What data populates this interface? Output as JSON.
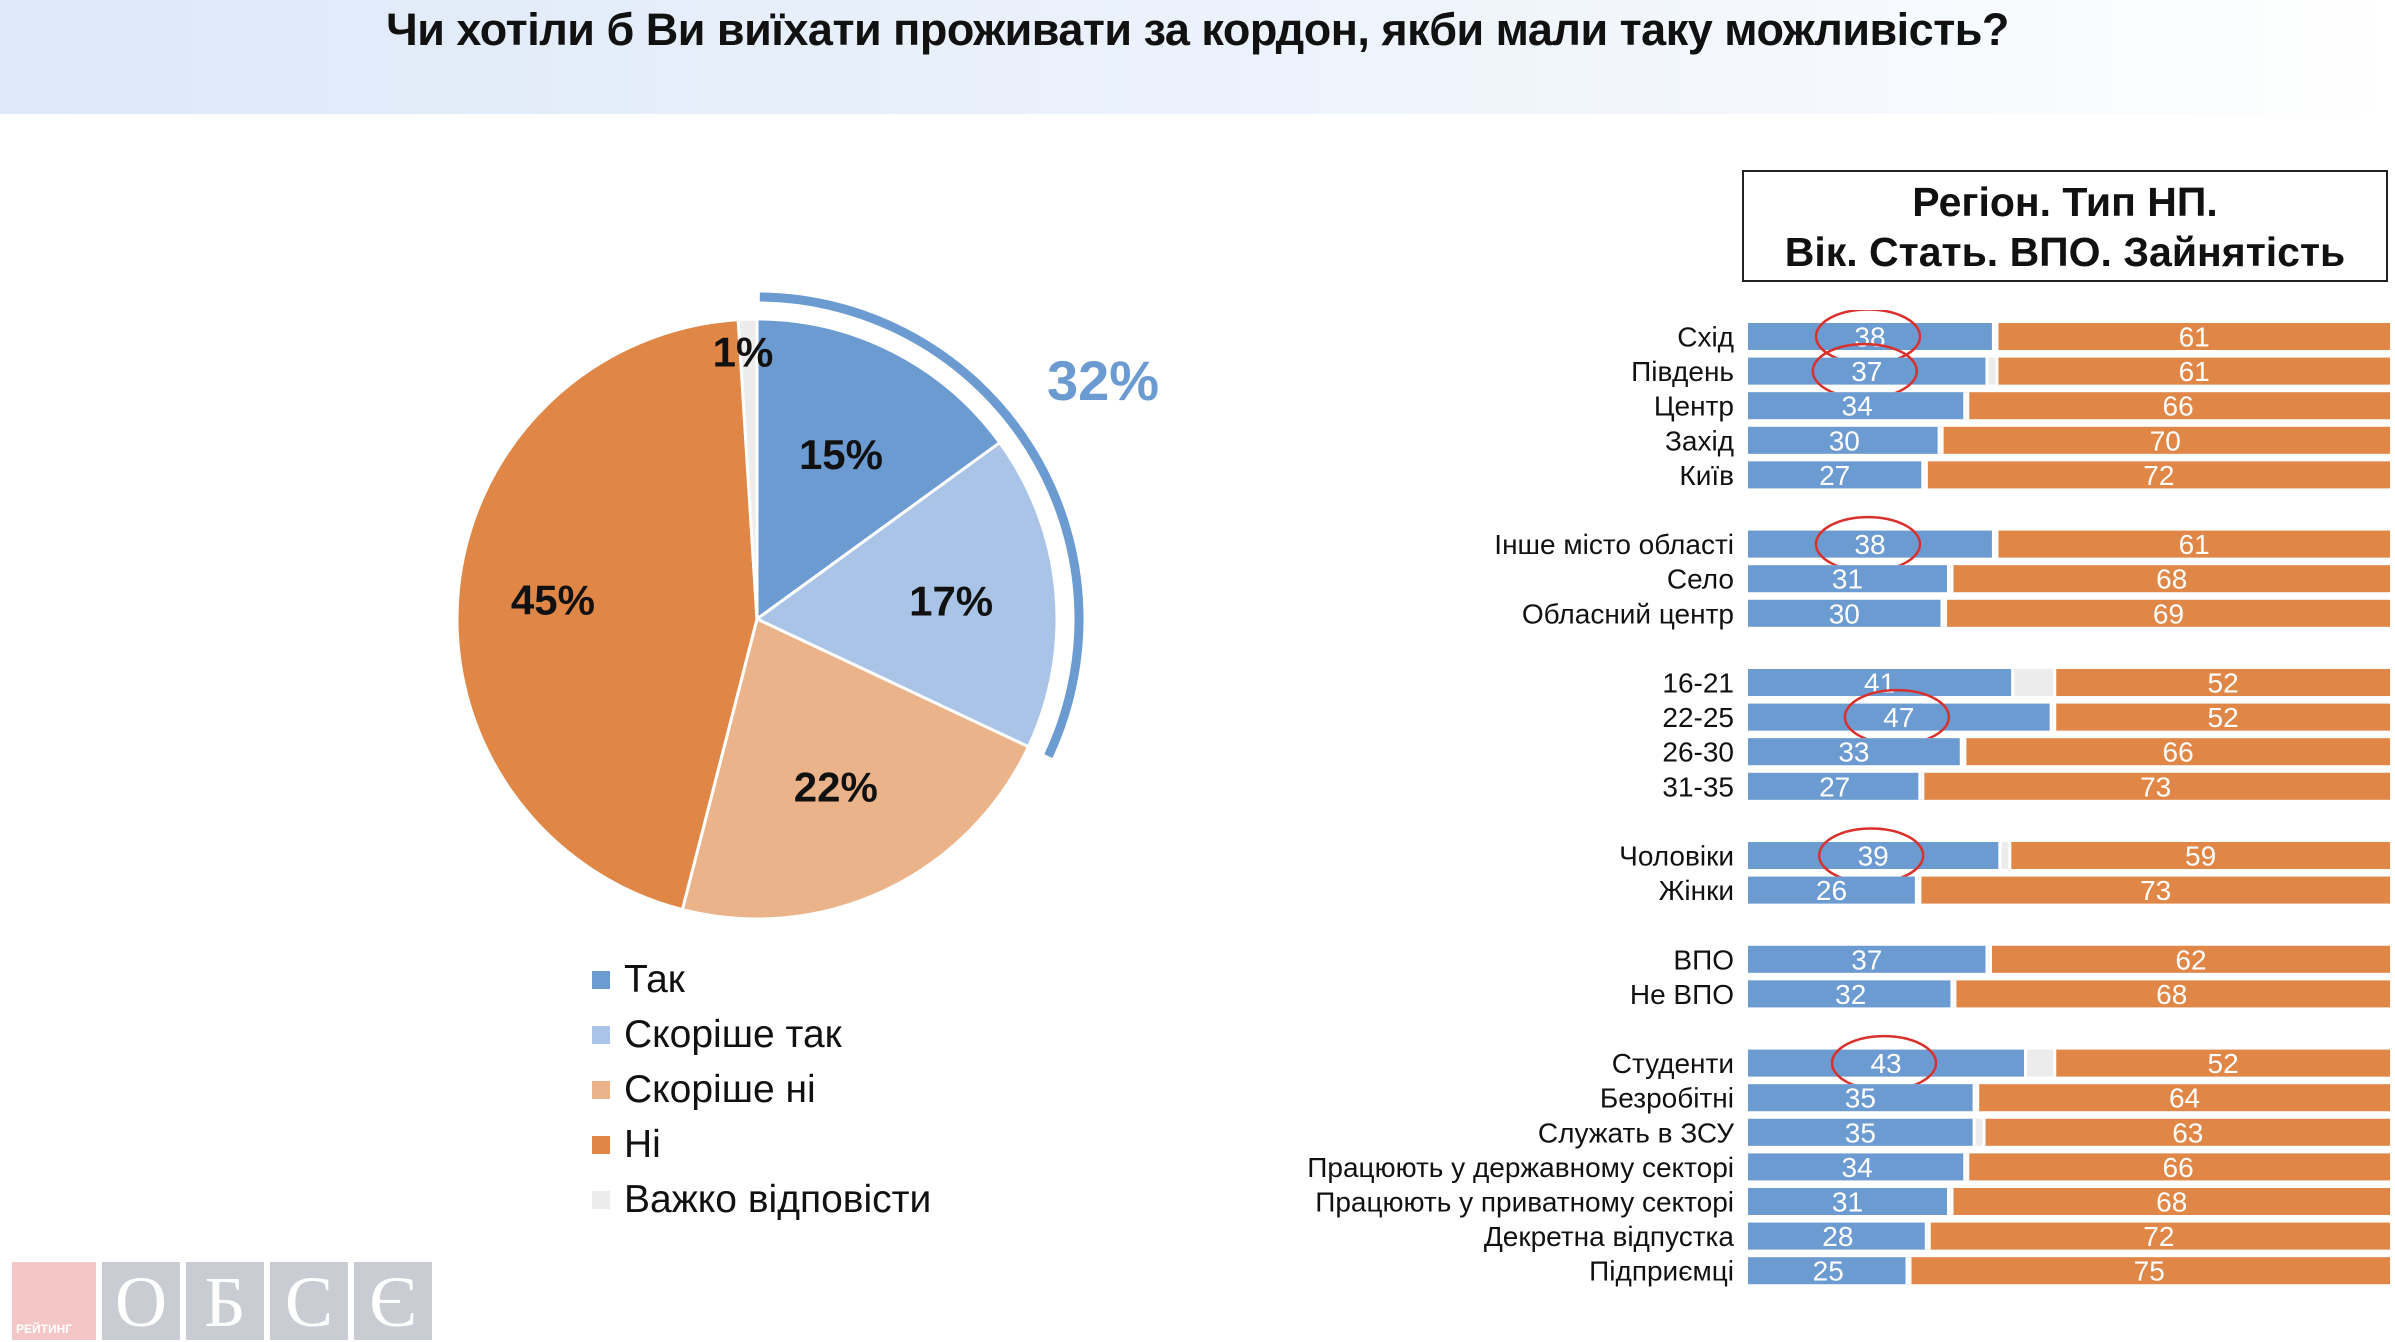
{
  "title": "Чи хотіли б Ви виїхати проживати за кордон, якби мали таку можливість?",
  "filter_box": {
    "line1": "Регіон. Тип НП.",
    "line2": "Вік. Стать. ВПО. Зайнятість"
  },
  "colors": {
    "yes": "#6b9bd1",
    "rather_yes": "#a9c4e6",
    "rather_no": "#ebb38a",
    "no": "#e08747",
    "hard": "#ececec",
    "total_arc": "#6b9bd1",
    "circle": "#d9302c"
  },
  "chart_data": [
    {
      "type": "pie",
      "categories": [
        "Так",
        "Скоріше так",
        "Скоріше ні",
        "Ні",
        "Важко відповісти"
      ],
      "values": [
        15,
        17,
        22,
        45,
        1
      ],
      "labels": [
        "15%",
        "17%",
        "22%",
        "45%",
        "1%"
      ],
      "total_label": "32%",
      "legend_placement": "bottom"
    },
    {
      "type": "bar",
      "stacked": true,
      "orientation": "horizontal",
      "groups": [
        {
          "rows": [
            {
              "label": "Схід",
              "yes": 38,
              "no": 61,
              "circled": true
            },
            {
              "label": "Південь",
              "yes": 37,
              "no": 61,
              "circled": true
            },
            {
              "label": "Центр",
              "yes": 34,
              "no": 66,
              "circled": false
            },
            {
              "label": "Захід",
              "yes": 30,
              "no": 70,
              "circled": false
            },
            {
              "label": "Київ",
              "yes": 27,
              "no": 72,
              "circled": false
            }
          ]
        },
        {
          "rows": [
            {
              "label": "Інше місто області",
              "yes": 38,
              "no": 61,
              "circled": true
            },
            {
              "label": "Село",
              "yes": 31,
              "no": 68,
              "circled": false
            },
            {
              "label": "Обласний центр",
              "yes": 30,
              "no": 69,
              "circled": false
            }
          ]
        },
        {
          "rows": [
            {
              "label": "16-21",
              "yes": 41,
              "no": 52,
              "circled": false
            },
            {
              "label": "22-25",
              "yes": 47,
              "no": 52,
              "circled": true
            },
            {
              "label": "26-30",
              "yes": 33,
              "no": 66,
              "circled": false
            },
            {
              "label": "31-35",
              "yes": 27,
              "no": 73,
              "circled": false
            }
          ]
        },
        {
          "rows": [
            {
              "label": "Чоловіки",
              "yes": 39,
              "no": 59,
              "circled": true
            },
            {
              "label": "Жінки",
              "yes": 26,
              "no": 73,
              "circled": false
            }
          ]
        },
        {
          "rows": [
            {
              "label": "ВПО",
              "yes": 37,
              "no": 62,
              "circled": false
            },
            {
              "label": "Не ВПО",
              "yes": 32,
              "no": 68,
              "circled": false
            }
          ]
        },
        {
          "rows": [
            {
              "label": "Студенти",
              "yes": 43,
              "no": 52,
              "circled": true
            },
            {
              "label": "Безробітні",
              "yes": 35,
              "no": 64,
              "circled": false
            },
            {
              "label": "Служать в ЗСУ",
              "yes": 35,
              "no": 63,
              "circled": false
            },
            {
              "label": "Працюють у державному секторі",
              "yes": 34,
              "no": 66,
              "circled": false
            },
            {
              "label": "Працюють у приватному секторі",
              "yes": 31,
              "no": 68,
              "circled": false
            },
            {
              "label": "Декретна відпустка",
              "yes": 28,
              "no": 72,
              "circled": false
            },
            {
              "label": "Підприємці",
              "yes": 25,
              "no": 75,
              "circled": false
            }
          ]
        }
      ],
      "xlim": [
        0,
        100
      ]
    }
  ],
  "logo": {
    "small_text": "РЕЙТИНГ",
    "letters": [
      "О",
      "Б",
      "С",
      "Є"
    ]
  }
}
